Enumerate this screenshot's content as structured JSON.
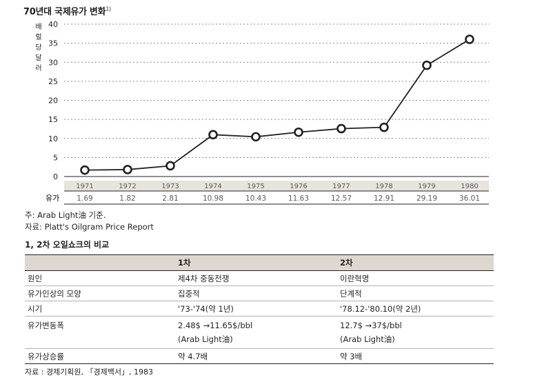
{
  "chart_data": {
    "type": "line",
    "title": "70년대 국제유가 변화",
    "title_footnote": "1)",
    "ylabel": "배럴당달러",
    "ylabel_chars": [
      "배",
      "럴",
      "당",
      "달",
      "러"
    ],
    "ylim": [
      0,
      40
    ],
    "yticks": [
      0,
      5,
      10,
      15,
      20,
      25,
      30,
      35,
      40
    ],
    "grid": "horizontal-dotted",
    "categories": [
      "1971",
      "1972",
      "1973",
      "1974",
      "1975",
      "1976",
      "1977",
      "1978",
      "1979",
      "1980"
    ],
    "series": [
      {
        "name": "유가",
        "values": [
          1.69,
          1.82,
          2.81,
          10.98,
          10.43,
          11.63,
          12.57,
          12.91,
          29.19,
          36.01
        ]
      }
    ],
    "table_row_label": "유가",
    "table_values": [
      "1.69",
      "1.82",
      "2.81",
      "10.98",
      "10.43",
      "11.63",
      "12.57",
      "12.91",
      "29.19",
      "36.01"
    ]
  },
  "notes": {
    "note": "주: Arab Light油 기준.",
    "source": "자료: Platt's Oilgram Price Report"
  },
  "comparison": {
    "title": "1, 2차 오일쇼크의 비교",
    "headers": [
      "",
      "1차",
      "2차"
    ],
    "rows": [
      {
        "label": "원인",
        "first": "제4차 중동전쟁",
        "second": "이란혁명"
      },
      {
        "label": "유가인상의 모양",
        "first": "집중적",
        "second": "단계적"
      },
      {
        "label": "시기",
        "first": "'73-'74(약 1년)",
        "second": "'78.12-'80.10(약 2년)"
      },
      {
        "label": "유가변동폭",
        "first": "2.48$ →11.65$/bbl",
        "first_sub": "(Arab Light油)",
        "second": "12.7$ →37$/bbl",
        "second_sub": "(Arab Light油)"
      },
      {
        "label": "유가상승률",
        "first": "약 4.7배",
        "second": "약 3배"
      }
    ],
    "source": "자료 : 경제기획원, 「경제백서」, 1983"
  },
  "colors": {
    "line": "#231f20",
    "marker_fill": "#ffffff",
    "table_band": "#e7e3dd",
    "header_fill": "#ddd7cf",
    "grid": "#8a8a8a"
  }
}
